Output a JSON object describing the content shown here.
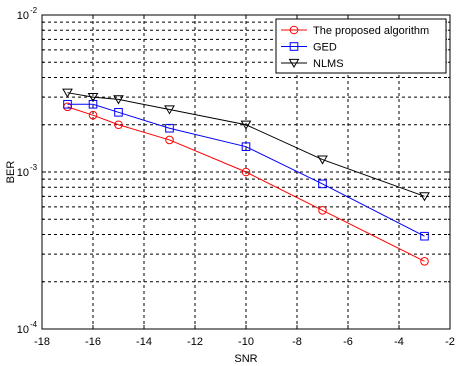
{
  "chart_data": {
    "type": "line",
    "title": "",
    "xlabel": "SNR",
    "ylabel": "BER",
    "xlim": [
      -18,
      -2
    ],
    "ylim": [
      0.0001,
      0.01
    ],
    "yscale": "log",
    "grid": true,
    "legend_position": "top-right",
    "x_ticks": [
      -18,
      -16,
      -14,
      -12,
      -10,
      -8,
      -6,
      -4,
      -2
    ],
    "x_tick_labels": [
      "-18",
      "-16",
      "-14",
      "-12",
      "-10",
      "-8",
      "-6",
      "-4",
      "-2"
    ],
    "y_ticks": [
      0.0001,
      0.001,
      0.01
    ],
    "y_tick_labels": [
      {
        "base": "10",
        "exp": "-4"
      },
      {
        "base": "10",
        "exp": "-3"
      },
      {
        "base": "10",
        "exp": "-2"
      }
    ],
    "series": [
      {
        "name": "The proposed algorithm",
        "color": "#ff0000",
        "marker": "circle",
        "x": [
          -17,
          -16,
          -15,
          -13,
          -10,
          -7,
          -3
        ],
        "y": [
          0.0026,
          0.0023,
          0.002,
          0.0016,
          0.001,
          0.00057,
          0.00027
        ]
      },
      {
        "name": "GED",
        "color": "#0000ff",
        "marker": "square",
        "x": [
          -17,
          -16,
          -15,
          -13,
          -10,
          -7,
          -3
        ],
        "y": [
          0.0027,
          0.0027,
          0.0024,
          0.0019,
          0.00145,
          0.00084,
          0.00039
        ]
      },
      {
        "name": "NLMS",
        "color": "#000000",
        "marker": "triangle-down",
        "x": [
          -17,
          -16,
          -15,
          -13,
          -10,
          -7,
          -3
        ],
        "y": [
          0.0032,
          0.003,
          0.0029,
          0.0025,
          0.002,
          0.0012,
          0.0007
        ]
      }
    ]
  }
}
